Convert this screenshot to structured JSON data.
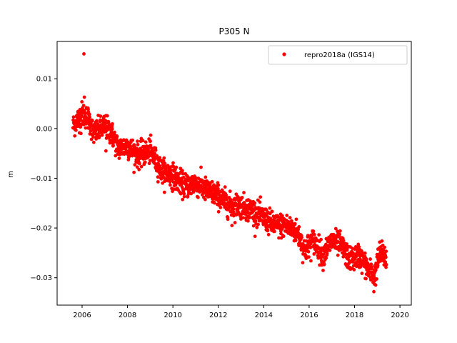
{
  "chart_data": {
    "type": "scatter",
    "title": "P305 N",
    "ylabel": "m",
    "xlabel": "",
    "xlim": [
      2004.9,
      2020.5
    ],
    "ylim": [
      -0.0355,
      0.0175
    ],
    "xticks": [
      2006,
      2008,
      2010,
      2012,
      2014,
      2016,
      2018,
      2020
    ],
    "xtick_labels": [
      "2006",
      "2008",
      "2010",
      "2012",
      "2014",
      "2016",
      "2018",
      "2020"
    ],
    "yticks": [
      0.01,
      0.0,
      -0.01,
      -0.02,
      -0.03
    ],
    "ytick_labels": [
      "0.01",
      "0.00",
      "−0.01",
      "−0.02",
      "−0.03"
    ],
    "legend_placement": "top-right",
    "grid": false,
    "series": [
      {
        "name": "repro2018a (IGS14)",
        "color": "#ff0000",
        "marker": "circle",
        "x_range": [
          2005.6,
          2019.4
        ],
        "trend_points": [
          [
            2005.6,
            0.0005
          ],
          [
            2006.0,
            0.003
          ],
          [
            2006.3,
            0.002
          ],
          [
            2006.5,
            -0.001
          ],
          [
            2007.0,
            0.0005
          ],
          [
            2007.3,
            -0.001
          ],
          [
            2007.6,
            -0.004
          ],
          [
            2008.0,
            -0.0035
          ],
          [
            2008.5,
            -0.0055
          ],
          [
            2009.0,
            -0.0045
          ],
          [
            2009.5,
            -0.0085
          ],
          [
            2010.0,
            -0.0095
          ],
          [
            2010.5,
            -0.0115
          ],
          [
            2011.0,
            -0.011
          ],
          [
            2011.5,
            -0.0125
          ],
          [
            2012.0,
            -0.0135
          ],
          [
            2012.5,
            -0.0155
          ],
          [
            2013.0,
            -0.0155
          ],
          [
            2013.5,
            -0.0165
          ],
          [
            2014.0,
            -0.018
          ],
          [
            2014.5,
            -0.0195
          ],
          [
            2015.0,
            -0.0195
          ],
          [
            2015.5,
            -0.021
          ],
          [
            2015.8,
            -0.0245
          ],
          [
            2016.2,
            -0.0225
          ],
          [
            2016.6,
            -0.0255
          ],
          [
            2017.0,
            -0.0225
          ],
          [
            2017.4,
            -0.0235
          ],
          [
            2017.8,
            -0.0265
          ],
          [
            2018.2,
            -0.0255
          ],
          [
            2018.6,
            -0.0285
          ],
          [
            2018.9,
            -0.0295
          ],
          [
            2019.1,
            -0.025
          ],
          [
            2019.4,
            -0.026
          ]
        ],
        "scatter_sigma": 0.0012,
        "outliers": [
          [
            2006.08,
            0.015
          ],
          [
            2006.1,
            0.0063
          ],
          [
            2005.95,
            -0.001
          ],
          [
            2007.05,
            -0.0045
          ],
          [
            2018.85,
            -0.0328
          ],
          [
            2012.6,
            -0.0195
          ]
        ]
      }
    ]
  }
}
